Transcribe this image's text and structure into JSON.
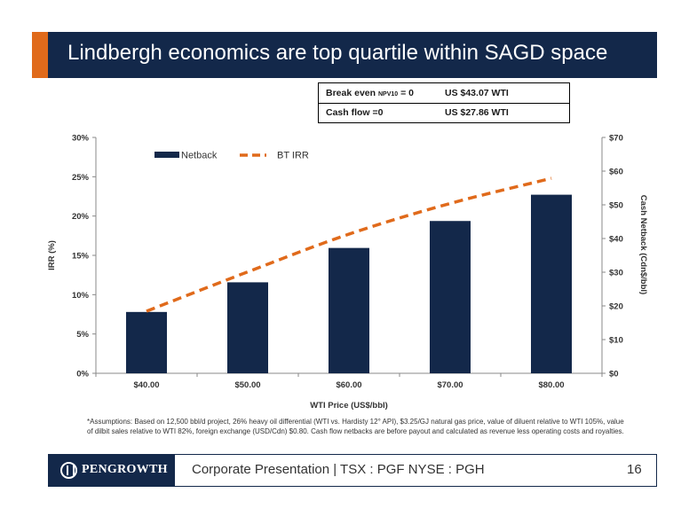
{
  "title": "Lindbergh economics are top quartile within SAGD space",
  "breakeven": {
    "row1_label": "Break even",
    "row1_sub": "NPV10",
    "row1_eq": " = 0",
    "row1_value": "US  $43.07 WTI",
    "row2_label": "Cash flow =0",
    "row2_value": "US  $27.86 WTI"
  },
  "chart_data": {
    "type": "bar",
    "categories": [
      "$40.00",
      "$50.00",
      "$60.00",
      "$70.00",
      "$80.00"
    ],
    "xlabel": "WTI Price (US$/bbl)",
    "series": [
      {
        "name": "Netback",
        "kind": "bar",
        "axis": "right",
        "values": [
          18.2,
          27.0,
          37.2,
          45.2,
          53.0
        ],
        "color": "#13284a"
      },
      {
        "name": "BT IRR",
        "kind": "line",
        "axis": "left",
        "values": [
          7.9,
          12.9,
          17.7,
          21.6,
          24.8
        ],
        "color": "#e06a1b",
        "style": "dashed"
      }
    ],
    "left_axis": {
      "label": "IRR (%)",
      "min": 0,
      "max": 30,
      "ticks": [
        "0%",
        "5%",
        "10%",
        "15%",
        "20%",
        "25%",
        "30%"
      ]
    },
    "right_axis": {
      "label": "Cash Netback (Cdn$/bbl)",
      "min": 0,
      "max": 70,
      "ticks": [
        "$0",
        "$10",
        "$20",
        "$30",
        "$40",
        "$50",
        "$60",
        "$70"
      ]
    },
    "grid": false,
    "legend_position": "top-left"
  },
  "footnote": "*Assumptions:  Based on 12,500 bbl/d project,  26% heavy oil differential (WTI vs. Hardisty 12° API), $3.25/GJ natural gas price, value of diluent relative to WTI 105%, value of dilbit sales relative to WTI 82%, foreign exchange (USD/Cdn) $0.80. Cash flow netbacks are before payout and calculated as revenue less operating costs and royalties.",
  "footer": {
    "logo_text": "PENGROWTH",
    "corporate": "Corporate Presentation  |  TSX : PGF     NYSE : PGH",
    "page": "16"
  }
}
